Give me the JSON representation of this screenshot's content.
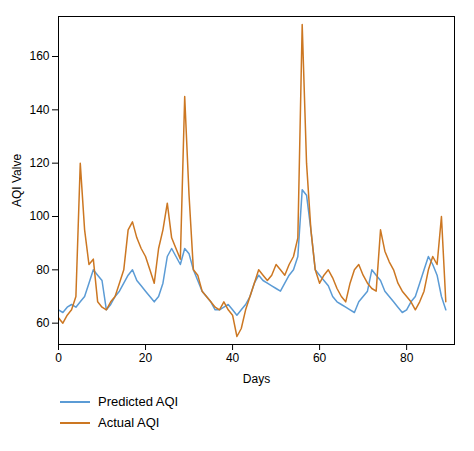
{
  "chart_data": {
    "type": "line",
    "xlabel": "Days",
    "ylabel": "AQI Valve",
    "x": [
      0,
      1,
      2,
      3,
      4,
      5,
      6,
      7,
      8,
      9,
      10,
      11,
      12,
      13,
      14,
      15,
      16,
      17,
      18,
      19,
      20,
      21,
      22,
      23,
      24,
      25,
      26,
      27,
      28,
      29,
      30,
      31,
      32,
      33,
      34,
      35,
      36,
      37,
      38,
      39,
      40,
      41,
      42,
      43,
      44,
      45,
      46,
      47,
      48,
      49,
      50,
      51,
      52,
      53,
      54,
      55,
      56,
      57,
      58,
      59,
      60,
      61,
      62,
      63,
      64,
      65,
      66,
      67,
      68,
      69,
      70,
      71,
      72,
      73,
      74,
      75,
      76,
      77,
      78,
      79,
      80,
      81,
      82,
      83,
      84,
      85,
      86,
      87,
      88,
      89
    ],
    "series": [
      {
        "name": "Predicted AQI",
        "color": "#5b9bd5",
        "values": [
          65,
          64,
          66,
          67,
          66,
          68,
          70,
          75,
          80,
          78,
          76,
          65,
          67,
          70,
          72,
          75,
          78,
          80,
          76,
          74,
          72,
          70,
          68,
          70,
          75,
          85,
          88,
          85,
          82,
          88,
          86,
          80,
          76,
          72,
          70,
          68,
          65,
          65,
          66,
          67,
          65,
          63,
          65,
          67,
          70,
          75,
          78,
          76,
          75,
          74,
          73,
          72,
          75,
          78,
          80,
          85,
          110,
          108,
          95,
          80,
          78,
          76,
          74,
          70,
          68,
          67,
          66,
          65,
          64,
          68,
          70,
          72,
          80,
          78,
          76,
          72,
          70,
          68,
          66,
          64,
          65,
          68,
          70,
          75,
          80,
          85,
          82,
          78,
          70,
          65
        ]
      },
      {
        "name": "Actual AQI",
        "color": "#cc7722",
        "values": [
          62,
          60,
          63,
          65,
          70,
          120,
          95,
          82,
          84,
          68,
          66,
          65,
          68,
          70,
          75,
          80,
          95,
          98,
          92,
          88,
          85,
          80,
          75,
          88,
          95,
          105,
          92,
          88,
          84,
          145,
          108,
          80,
          78,
          72,
          70,
          68,
          66,
          65,
          68,
          65,
          63,
          55,
          58,
          65,
          70,
          75,
          80,
          78,
          76,
          78,
          82,
          80,
          78,
          82,
          85,
          92,
          172,
          120,
          95,
          80,
          75,
          78,
          80,
          77,
          73,
          70,
          68,
          75,
          80,
          82,
          78,
          75,
          73,
          72,
          95,
          87,
          83,
          80,
          75,
          72,
          70,
          68,
          65,
          68,
          72,
          80,
          85,
          82,
          100,
          68
        ]
      }
    ],
    "xlim": [
      0,
      91
    ],
    "ylim": [
      52,
      175
    ],
    "xticks": [
      0,
      20,
      40,
      60,
      80
    ],
    "yticks": [
      60,
      80,
      100,
      120,
      140,
      160
    ],
    "grid": false,
    "legend": "bottom"
  }
}
